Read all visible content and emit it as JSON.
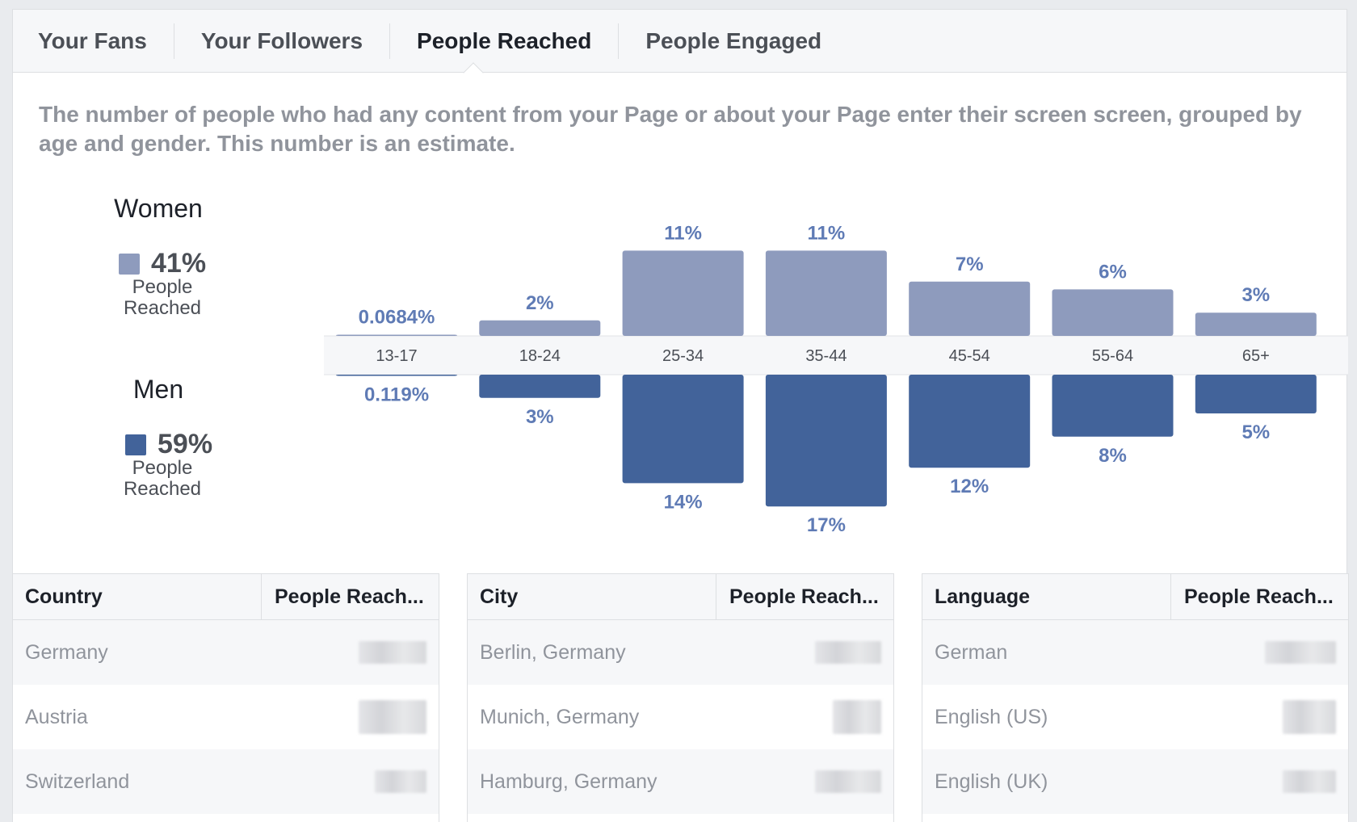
{
  "tabs": [
    {
      "label": "Your Fans",
      "active": false
    },
    {
      "label": "Your Followers",
      "active": false
    },
    {
      "label": "People Reached",
      "active": true
    },
    {
      "label": "People Engaged",
      "active": false
    }
  ],
  "description": "The number of people who had any content from your Page or about your Page enter their screen screen, grouped by age and gender. This number is an estimate.",
  "legend": {
    "women": {
      "title": "Women",
      "percent": "41%",
      "sub": "People Reached",
      "color": "#8e9bbd"
    },
    "men": {
      "title": "Men",
      "percent": "59%",
      "sub": "People Reached",
      "color": "#42639a"
    }
  },
  "chart_data": {
    "type": "bar",
    "categories": [
      "13-17",
      "18-24",
      "25-34",
      "35-44",
      "45-54",
      "55-64",
      "65+"
    ],
    "series": [
      {
        "name": "Women",
        "values": [
          0.0684,
          2,
          11,
          11,
          7,
          6,
          3
        ],
        "labels": [
          "0.0684%",
          "2%",
          "11%",
          "11%",
          "7%",
          "6%",
          "3%"
        ],
        "color": "#8e9bbd"
      },
      {
        "name": "Men",
        "values": [
          0.119,
          3,
          14,
          17,
          12,
          8,
          5
        ],
        "labels": [
          "0.119%",
          "3%",
          "14%",
          "17%",
          "12%",
          "8%",
          "5%"
        ],
        "color": "#42639a"
      }
    ]
  },
  "tables": [
    {
      "col1": "Country",
      "col2": "People Reach...",
      "rows": [
        "Germany",
        "Austria",
        "Switzerland"
      ]
    },
    {
      "col1": "City",
      "col2": "People Reach...",
      "rows": [
        "Berlin, Germany",
        "Munich, Germany",
        "Hamburg, Germany"
      ]
    },
    {
      "col1": "Language",
      "col2": "People Reach...",
      "rows": [
        "German",
        "English (US)",
        "English (UK)"
      ]
    }
  ]
}
